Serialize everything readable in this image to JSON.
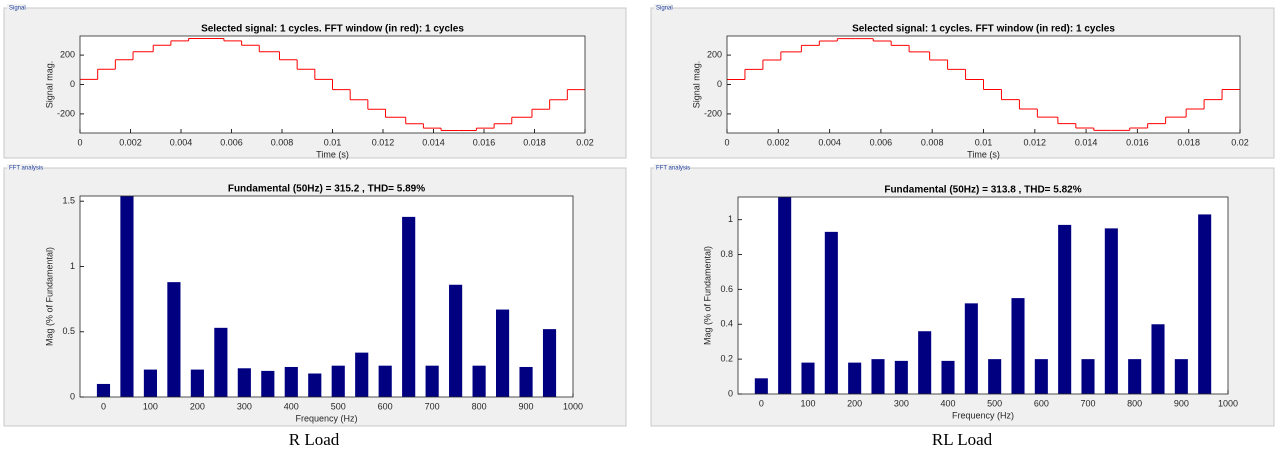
{
  "captions": [
    "R Load",
    "RL Load"
  ],
  "chart_data": [
    {
      "type": "step",
      "panel": "Signal",
      "title": "Selected signal: 1 cycles. FFT window (in red): 1 cycles",
      "xlabel": "Time (s)",
      "ylabel": "Signal mag.",
      "x": [
        0,
        0.0007,
        0.0014,
        0.0021,
        0.0029,
        0.0036,
        0.0043,
        0.005,
        0.0057,
        0.0064,
        0.0071,
        0.0079,
        0.0086,
        0.0093,
        0.01,
        0.0107,
        0.0114,
        0.0121,
        0.0129,
        0.0136,
        0.0143,
        0.015,
        0.0157,
        0.0164,
        0.0171,
        0.0179,
        0.0186,
        0.0193
      ],
      "series": [
        {
          "color": "#ff0000",
          "values": [
            35,
            104,
            168,
            223,
            267,
            297,
            313,
            313,
            297,
            267,
            223,
            168,
            104,
            35,
            -35,
            -104,
            -168,
            -223,
            -267,
            -297,
            -313,
            -313,
            -297,
            -267,
            -223,
            -168,
            -104,
            -35
          ]
        }
      ],
      "xlim": [
        0,
        0.02
      ],
      "ylim": [
        -330,
        330
      ],
      "xticks": [
        0,
        0.002,
        0.004,
        0.006,
        0.008,
        0.01,
        0.012,
        0.014,
        0.016,
        0.018,
        0.02
      ],
      "yticks": [
        -200,
        0,
        200
      ]
    },
    {
      "type": "bar",
      "panel": "FFT analysis",
      "title": "Fundamental (50Hz) = 315.2 , THD= 5.89%",
      "xlabel": "Frequency (Hz)",
      "ylabel": "Mag (% of Fundamental)",
      "x": [
        0,
        50,
        100,
        150,
        200,
        250,
        300,
        350,
        400,
        450,
        500,
        550,
        600,
        650,
        700,
        750,
        800,
        850,
        900,
        950
      ],
      "values": [
        0.1,
        1.6,
        0.21,
        0.88,
        0.21,
        0.53,
        0.22,
        0.2,
        0.23,
        0.18,
        0.24,
        0.34,
        0.24,
        1.38,
        0.24,
        0.86,
        0.24,
        0.67,
        0.23,
        0.52
      ],
      "color": "#000080",
      "xlim": [
        -50,
        1000
      ],
      "ylim": [
        0,
        1.54
      ],
      "xticks": [
        0,
        100,
        200,
        300,
        400,
        500,
        600,
        700,
        800,
        900,
        1000
      ],
      "yticks": [
        0,
        0.5,
        1,
        1.5
      ]
    },
    {
      "type": "step",
      "panel": "Signal",
      "title": "Selected signal: 1 cycles. FFT window (in red): 1 cycles",
      "xlabel": "Time (s)",
      "ylabel": "Signal mag.",
      "x": [
        0,
        0.0007,
        0.0014,
        0.0021,
        0.0029,
        0.0036,
        0.0043,
        0.005,
        0.0057,
        0.0064,
        0.0071,
        0.0079,
        0.0086,
        0.0093,
        0.01,
        0.0107,
        0.0114,
        0.0121,
        0.0129,
        0.0136,
        0.0143,
        0.015,
        0.0157,
        0.0164,
        0.0171,
        0.0179,
        0.0186,
        0.0193
      ],
      "series": [
        {
          "color": "#ff0000",
          "values": [
            34,
            103,
            167,
            222,
            266,
            296,
            312,
            312,
            296,
            266,
            222,
            167,
            103,
            34,
            -34,
            -103,
            -167,
            -222,
            -266,
            -296,
            -312,
            -312,
            -296,
            -266,
            -222,
            -167,
            -103,
            -34
          ]
        }
      ],
      "xlim": [
        0,
        0.02
      ],
      "ylim": [
        -330,
        330
      ],
      "xticks": [
        0,
        0.002,
        0.004,
        0.006,
        0.008,
        0.01,
        0.012,
        0.014,
        0.016,
        0.018,
        0.02
      ],
      "yticks": [
        -200,
        0,
        200
      ]
    },
    {
      "type": "bar",
      "panel": "FFT analysis",
      "title": "Fundamental (50Hz) = 313.8 , THD= 5.82%",
      "xlabel": "Frequency (Hz)",
      "ylabel": "Mag (% of Fundamental)",
      "x": [
        0,
        50,
        100,
        150,
        200,
        250,
        300,
        350,
        400,
        450,
        500,
        550,
        600,
        650,
        700,
        750,
        800,
        850,
        900,
        950
      ],
      "values": [
        0.09,
        1.2,
        0.18,
        0.93,
        0.18,
        0.2,
        0.19,
        0.36,
        0.19,
        0.52,
        0.2,
        0.55,
        0.2,
        0.97,
        0.2,
        0.95,
        0.2,
        0.4,
        0.2,
        1.03
      ],
      "color": "#000080",
      "xlim": [
        -50,
        1000
      ],
      "ylim": [
        0,
        1.13
      ],
      "xticks": [
        0,
        100,
        200,
        300,
        400,
        500,
        600,
        700,
        800,
        900,
        1000
      ],
      "yticks": [
        0,
        0.2,
        0.4,
        0.6,
        0.8,
        1
      ]
    }
  ]
}
